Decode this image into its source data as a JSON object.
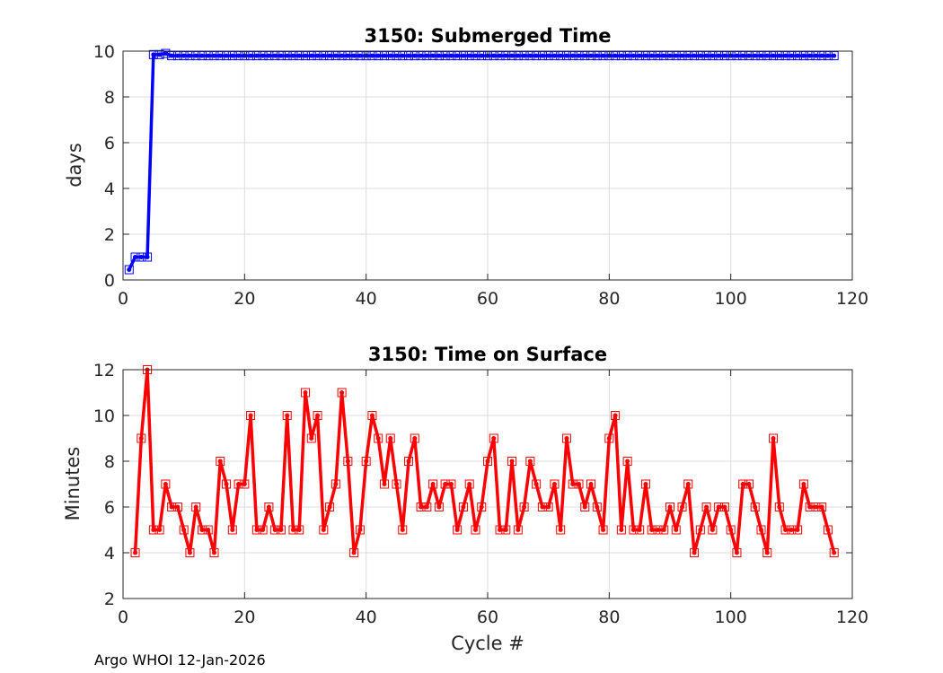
{
  "footer": "Argo WHOI 12-Jan-2026",
  "chart_data": [
    {
      "type": "line",
      "title": "3150: Submerged Time",
      "xlabel": "",
      "ylabel": "days",
      "xlim": [
        0,
        120
      ],
      "ylim": [
        0,
        10
      ],
      "xticks": [
        0,
        20,
        40,
        60,
        80,
        100,
        120
      ],
      "yticks": [
        0,
        2,
        4,
        6,
        8,
        10
      ],
      "grid": true,
      "series_color": "#0000ff",
      "marker": "square",
      "x": [
        1,
        2,
        3,
        4,
        5,
        6,
        7,
        8,
        9,
        10,
        11,
        12,
        13,
        14,
        15,
        16,
        17,
        18,
        19,
        20,
        21,
        22,
        23,
        24,
        25,
        26,
        27,
        28,
        29,
        30,
        31,
        32,
        33,
        34,
        35,
        36,
        37,
        38,
        39,
        40,
        41,
        42,
        43,
        44,
        45,
        46,
        47,
        48,
        49,
        50,
        51,
        52,
        53,
        54,
        55,
        56,
        57,
        58,
        59,
        60,
        61,
        62,
        63,
        64,
        65,
        66,
        67,
        68,
        69,
        70,
        71,
        72,
        73,
        74,
        75,
        76,
        77,
        78,
        79,
        80,
        81,
        82,
        83,
        84,
        85,
        86,
        87,
        88,
        89,
        90,
        91,
        92,
        93,
        94,
        95,
        96,
        97,
        98,
        99,
        100,
        101,
        102,
        103,
        104,
        105,
        106,
        107,
        108,
        109,
        110,
        111,
        112,
        113,
        114,
        115,
        116,
        117
      ],
      "y": [
        0.45,
        1.0,
        1.0,
        1.0,
        9.85,
        9.85,
        9.9,
        9.8,
        9.8,
        9.8,
        9.8,
        9.8,
        9.8,
        9.8,
        9.8,
        9.8,
        9.8,
        9.8,
        9.8,
        9.8,
        9.8,
        9.8,
        9.8,
        9.8,
        9.8,
        9.8,
        9.8,
        9.8,
        9.8,
        9.8,
        9.8,
        9.8,
        9.8,
        9.8,
        9.8,
        9.8,
        9.8,
        9.8,
        9.8,
        9.8,
        9.8,
        9.8,
        9.8,
        9.8,
        9.8,
        9.8,
        9.8,
        9.8,
        9.8,
        9.8,
        9.8,
        9.8,
        9.8,
        9.8,
        9.8,
        9.8,
        9.8,
        9.8,
        9.8,
        9.8,
        9.8,
        9.8,
        9.8,
        9.8,
        9.8,
        9.8,
        9.8,
        9.8,
        9.8,
        9.8,
        9.8,
        9.8,
        9.8,
        9.8,
        9.8,
        9.8,
        9.8,
        9.8,
        9.8,
        9.8,
        9.8,
        9.8,
        9.8,
        9.8,
        9.8,
        9.8,
        9.8,
        9.8,
        9.8,
        9.8,
        9.8,
        9.8,
        9.8,
        9.8,
        9.8,
        9.8,
        9.8,
        9.8,
        9.8,
        9.8,
        9.8,
        9.8,
        9.8,
        9.8,
        9.8,
        9.8,
        9.8,
        9.8,
        9.8,
        9.8,
        9.8,
        9.8,
        9.8,
        9.8,
        9.8,
        9.8,
        9.8
      ]
    },
    {
      "type": "line",
      "title": "3150: Time on Surface",
      "xlabel": "Cycle #",
      "ylabel": "Minutes",
      "xlim": [
        0,
        120
      ],
      "ylim": [
        2,
        12
      ],
      "xticks": [
        0,
        20,
        40,
        60,
        80,
        100,
        120
      ],
      "yticks": [
        2,
        4,
        6,
        8,
        10,
        12
      ],
      "grid": true,
      "series_color": "#ff0000",
      "marker": "square",
      "x": [
        2,
        3,
        4,
        5,
        6,
        7,
        8,
        9,
        10,
        11,
        12,
        13,
        14,
        15,
        16,
        17,
        18,
        19,
        20,
        21,
        22,
        23,
        24,
        25,
        26,
        27,
        28,
        29,
        30,
        31,
        32,
        33,
        34,
        35,
        36,
        37,
        38,
        39,
        40,
        41,
        42,
        43,
        44,
        45,
        46,
        47,
        48,
        49,
        50,
        51,
        52,
        53,
        54,
        55,
        56,
        57,
        58,
        59,
        60,
        61,
        62,
        63,
        64,
        65,
        66,
        67,
        68,
        69,
        70,
        71,
        72,
        73,
        74,
        75,
        76,
        77,
        78,
        79,
        80,
        81,
        82,
        83,
        84,
        85,
        86,
        87,
        88,
        89,
        90,
        91,
        92,
        93,
        94,
        95,
        96,
        97,
        98,
        99,
        100,
        101,
        102,
        103,
        104,
        105,
        106,
        107,
        108,
        109,
        110,
        111,
        112,
        113,
        114,
        115,
        116,
        117
      ],
      "y": [
        4,
        9,
        12,
        5,
        5,
        7,
        6,
        6,
        5,
        4,
        6,
        5,
        5,
        4,
        8,
        7,
        5,
        7,
        7,
        10,
        5,
        5,
        6,
        5,
        5,
        10,
        5,
        5,
        11,
        9,
        10,
        5,
        6,
        7,
        11,
        8,
        4,
        5,
        8,
        10,
        9,
        7,
        9,
        7,
        5,
        8,
        9,
        6,
        6,
        7,
        6,
        7,
        7,
        5,
        6,
        7,
        5,
        6,
        8,
        9,
        5,
        5,
        8,
        5,
        6,
        8,
        7,
        6,
        6,
        7,
        5,
        9,
        7,
        7,
        6,
        7,
        6,
        5,
        9,
        10,
        5,
        8,
        5,
        5,
        7,
        5,
        5,
        5,
        6,
        5,
        6,
        7,
        4,
        5,
        6,
        5,
        6,
        6,
        5,
        4,
        7,
        7,
        6,
        5,
        4,
        9,
        6,
        5,
        5,
        5,
        7,
        6,
        6,
        6,
        5,
        4
      ]
    }
  ]
}
